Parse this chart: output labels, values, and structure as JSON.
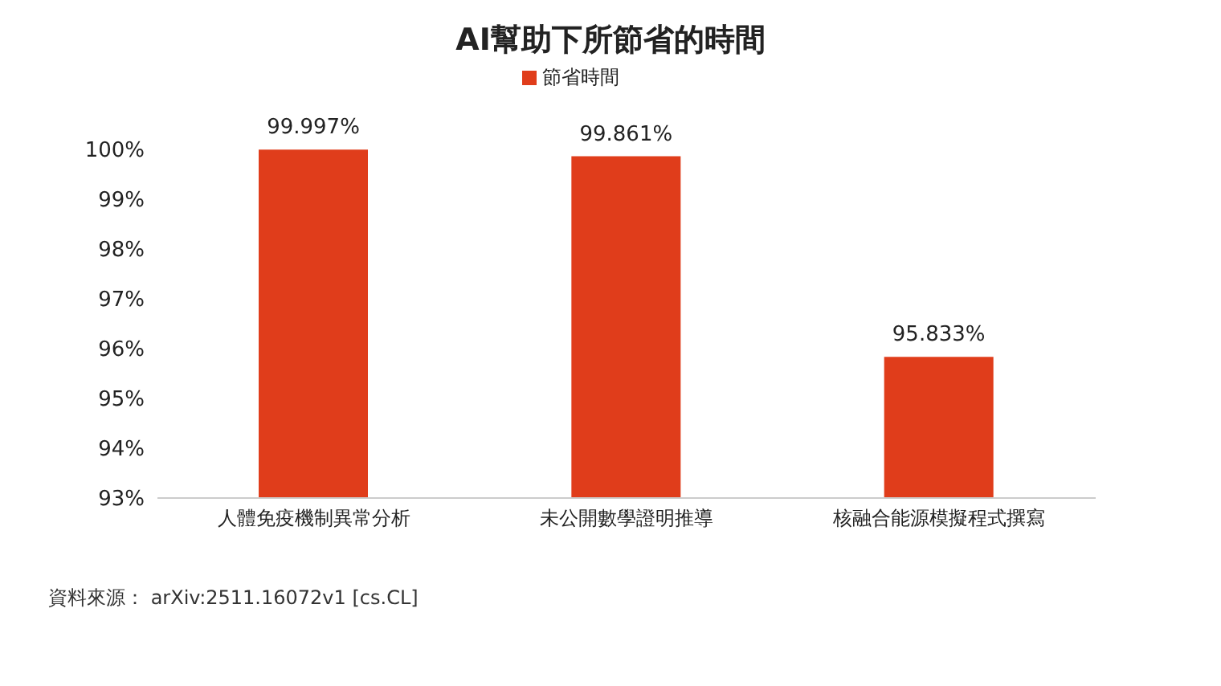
{
  "chart_data": {
    "type": "bar",
    "title": "AI幫助下所節省的時間",
    "categories": [
      "人體免疫機制異常分析",
      "未公開數學證明推導",
      "核融合能源模擬程式撰寫"
    ],
    "series": [
      {
        "name": "節省時間",
        "color": "#e03d1b",
        "values": [
          99.997,
          99.861,
          95.833
        ],
        "value_labels": [
          "99.997%",
          "99.861%",
          "95.833%"
        ]
      }
    ],
    "ylim": [
      93,
      100
    ],
    "yticks": [
      {
        "value": 93,
        "label": "93%"
      },
      {
        "value": 94,
        "label": "94%"
      },
      {
        "value": 95,
        "label": "95%"
      },
      {
        "value": 96,
        "label": "96%"
      },
      {
        "value": 97,
        "label": "97%"
      },
      {
        "value": 98,
        "label": "98%"
      },
      {
        "value": 99,
        "label": "99%"
      },
      {
        "value": 100,
        "label": "100%"
      }
    ],
    "grid": false,
    "legend": "top",
    "annotations": [
      "資料來源： arXiv:2511.16072v1 [cs.CL]"
    ]
  }
}
